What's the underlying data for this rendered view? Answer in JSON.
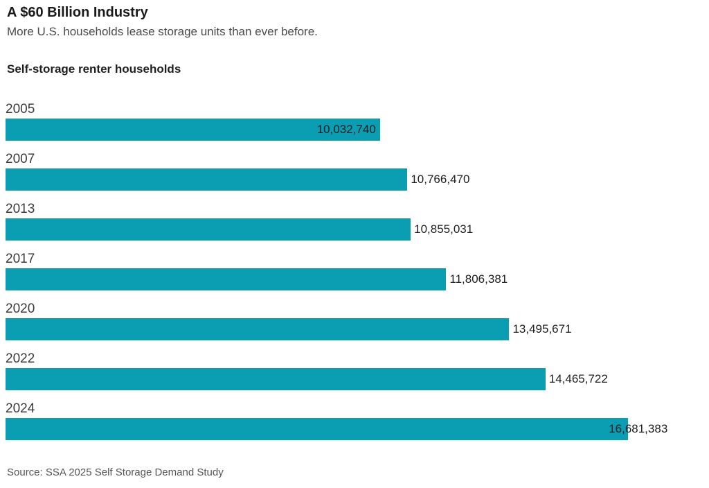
{
  "header": {
    "title": "A $60 Billion Industry",
    "subtitle": "More U.S. households lease storage units than ever before."
  },
  "chart_data": {
    "type": "bar",
    "orientation": "horizontal",
    "title": "Self-storage renter households",
    "categories": [
      "2005",
      "2007",
      "2013",
      "2017",
      "2020",
      "2022",
      "2024"
    ],
    "values": [
      10032740,
      10766470,
      10855031,
      11806381,
      13495671,
      14465722,
      16681383
    ],
    "value_labels": [
      "10,032,740",
      "10,766,470",
      "10,855,031",
      "11,806,381",
      "13,495,671",
      "14,465,722",
      "16,681,383"
    ],
    "label_positions": [
      "inside",
      "outside",
      "outside",
      "outside",
      "outside",
      "outside",
      "overlap"
    ],
    "xlim": [
      0,
      18700000
    ],
    "bar_color": "#0b9db2",
    "grid": false,
    "legend": false
  },
  "footer": {
    "source": "Source: SSA 2025 Self Storage Demand Study"
  }
}
